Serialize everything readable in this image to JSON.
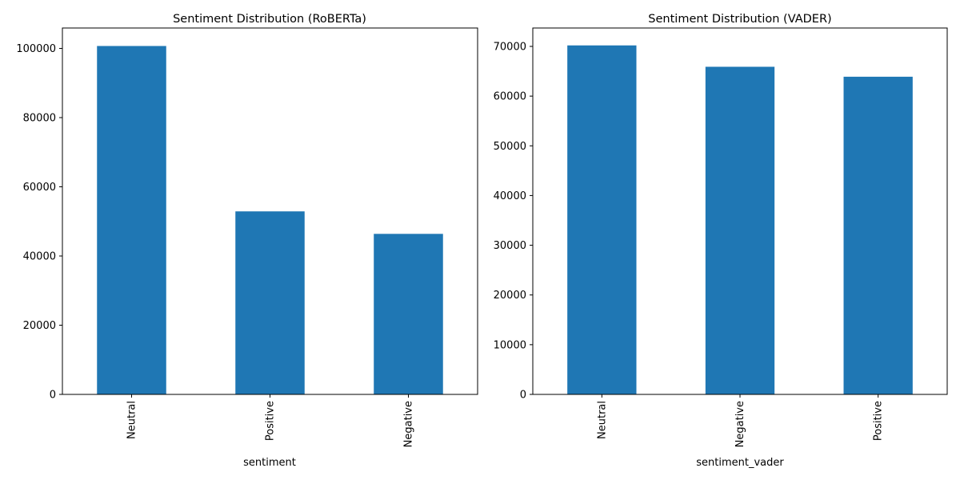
{
  "figure": {
    "background": "#ffffff"
  },
  "chart_data": [
    {
      "type": "bar",
      "title": "Sentiment Distribution (RoBERTa)",
      "xlabel": "sentiment",
      "ylabel": "",
      "categories": [
        "Neutral",
        "Positive",
        "Negative"
      ],
      "values": [
        100700,
        52900,
        46400
      ],
      "ylim": [
        0,
        105900
      ],
      "yticks": [
        0,
        20000,
        40000,
        60000,
        80000,
        100000
      ],
      "ytick_labels": [
        "0",
        "20000",
        "40000",
        "60000",
        "80000",
        "100000"
      ],
      "grid": false,
      "legend": "none",
      "bar_color": "#1f77b4"
    },
    {
      "type": "bar",
      "title": "Sentiment Distribution (VADER)",
      "xlabel": "sentiment_vader",
      "ylabel": "",
      "categories": [
        "Neutral",
        "Negative",
        "Positive"
      ],
      "values": [
        70200,
        65900,
        63900
      ],
      "ylim": [
        0,
        73700
      ],
      "yticks": [
        0,
        10000,
        20000,
        30000,
        40000,
        50000,
        60000,
        70000
      ],
      "ytick_labels": [
        "0",
        "10000",
        "20000",
        "30000",
        "40000",
        "50000",
        "60000",
        "70000"
      ],
      "grid": false,
      "legend": "none",
      "bar_color": "#1f77b4"
    }
  ]
}
